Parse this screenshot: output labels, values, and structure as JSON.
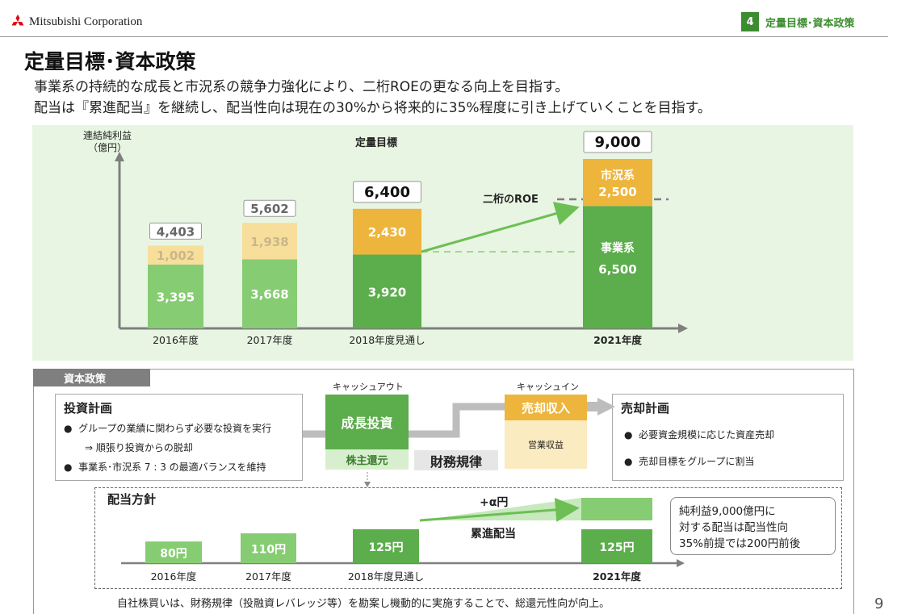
{
  "header": {
    "company": "Mitsubishi Corporation",
    "section_number": "4",
    "section_title": "定量目標･資本政策"
  },
  "title": "定量目標･資本政策",
  "subtitle_lines": [
    "事業系の持続的な成長と市況系の競争力強化により、二桁ROEの更なる向上を目指す。",
    "配当は『累進配当』を継続し、配当性向は現在の30%から将来的に35%程度に引き上げていくことを目指す。"
  ],
  "chart_data": [
    {
      "type": "bar",
      "title": "定量目標",
      "ylabel": "連結純利益",
      "yunit": "（億円）",
      "categories": [
        "2016年度",
        "2017年度",
        "2018年度見通し",
        "2021年度"
      ],
      "series": [
        {
          "name": "事業系",
          "values": [
            3395,
            3668,
            3920,
            6500
          ]
        },
        {
          "name": "市況系",
          "values": [
            1002,
            1938,
            2430,
            2500
          ]
        }
      ],
      "totals": [
        4403,
        5602,
        6400,
        9000
      ],
      "display_values": {
        "base": [
          "3,395",
          "3,668",
          "3,920",
          "6,500"
        ],
        "top": [
          "1,002",
          "1,938",
          "2,430",
          "2,500"
        ],
        "totals": [
          "4,403",
          "5,602",
          "6,400",
          "9,000"
        ]
      },
      "annotations": [
        "二桁のROE",
        "市況系",
        "事業系"
      ],
      "colors": {
        "base": "#5cad4c",
        "base_light": "#86cc72",
        "top": "#edb53c",
        "top_light": "#f7df9b",
        "frame": "#7f7f7f"
      }
    },
    {
      "type": "bar",
      "title": "配当方針",
      "categories": [
        "2016年度",
        "2017年度",
        "2018年度見通し",
        "2021年度"
      ],
      "values": [
        80,
        110,
        125,
        125
      ],
      "display_values": [
        "80円",
        "110円",
        "125円",
        "125円"
      ],
      "annotations": [
        "+α円",
        "累進配当"
      ],
      "note": [
        "純利益9,000億円に",
        "対する配当は配当性向",
        "35%前提では200円前後"
      ]
    }
  ],
  "capital_policy": {
    "tag": "資本政策",
    "investment": {
      "title": "投資計画",
      "bullets": [
        "グループの業績に関わらず必要な投資を実行",
        "⇒ 順張り投資からの脱却",
        "事業系･市況系 7 : 3 の最適バランスを維持"
      ]
    },
    "cash_out_label": "キャッシュアウト",
    "cash_in_label": "キャッシュイン",
    "growth_investment": "成長投資",
    "shareholder_return": "株主還元",
    "financial_discipline": "財務規律",
    "sale_income": "売却収入",
    "operating_income": "営業収益",
    "sale_plan": {
      "title": "売却計画",
      "bullets": [
        "必要資金規模に応じた資産売却",
        "売却目標をグループに割当"
      ]
    }
  },
  "footer": "自社株買いは、財務規律（投融資レバレッジ等）を勘案し機動的に実施することで、総還元性向が向上。",
  "page_number": "9"
}
